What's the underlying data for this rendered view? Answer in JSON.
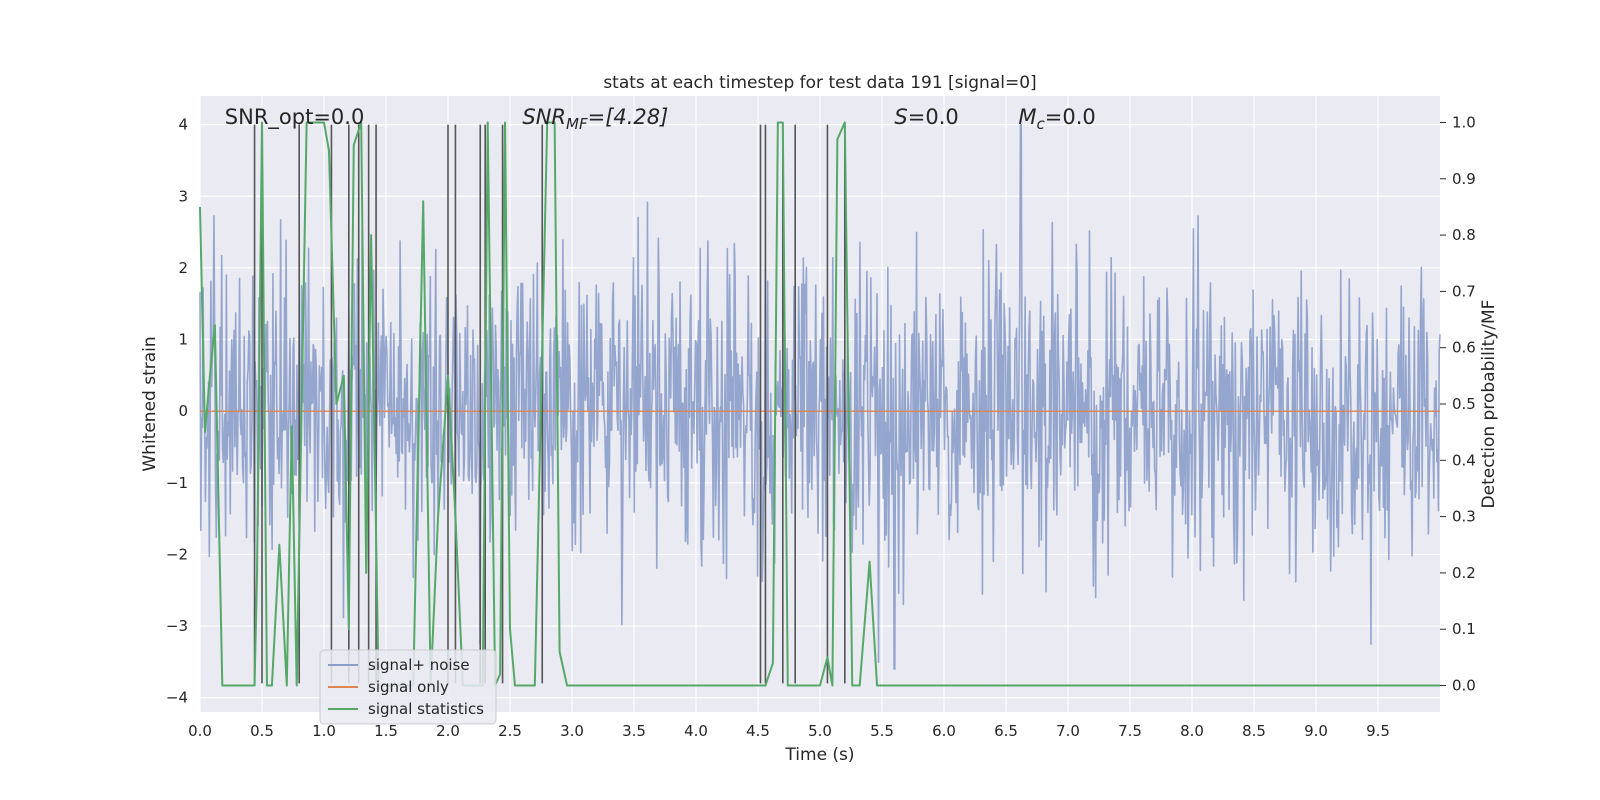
{
  "chart_data": {
    "type": "line",
    "title": "stats at each timestep for test data 191 [signal=0]",
    "xlabel": "Time (s)",
    "ylabel_left": "Whitened strain",
    "ylabel_right": "Detection probability/MF",
    "xlim": [
      0.0,
      10.0
    ],
    "ylim_left": [
      -4.2,
      4.4
    ],
    "ylim_right": [
      -0.047,
      1.047
    ],
    "xticks": [
      0.0,
      0.5,
      1.0,
      1.5,
      2.0,
      2.5,
      3.0,
      3.5,
      4.0,
      4.5,
      5.0,
      5.5,
      6.0,
      6.5,
      7.0,
      7.5,
      8.0,
      8.5,
      9.0,
      9.5
    ],
    "xtick_labels": [
      "0.0",
      "0.5",
      "1.0",
      "1.5",
      "2.0",
      "2.5",
      "3.0",
      "3.5",
      "4.0",
      "4.5",
      "5.0",
      "5.5",
      "6.0",
      "6.5",
      "7.0",
      "7.5",
      "8.0",
      "8.5",
      "9.0",
      "9.5"
    ],
    "yticks_left": [
      4,
      3,
      2,
      1,
      0,
      -1,
      -2,
      -3,
      -4
    ],
    "ytick_labels_left": [
      "4",
      "3",
      "2",
      "1",
      "0",
      "−1",
      "−2",
      "−3",
      "−4"
    ],
    "yticks_right": [
      1.0,
      0.9,
      0.8,
      0.7,
      0.6,
      0.5,
      0.4,
      0.3,
      0.2,
      0.1,
      0.0
    ],
    "ytick_labels_right": [
      "1.0",
      "0.9",
      "0.8",
      "0.7",
      "0.6",
      "0.5",
      "0.4",
      "0.3",
      "0.2",
      "0.1",
      "0.0"
    ],
    "grid": true,
    "legend_placement": "lower-left",
    "annotations": {
      "snr_opt": {
        "text": "SNR_opt=0.0",
        "x": 0.2
      },
      "snr_mf_prefix": {
        "text": "SNR",
        "x": 2.6
      },
      "snr_mf_sub": "MF",
      "snr_mf_suffix": "=[4.28]",
      "s_prefix": {
        "text": "S",
        "x": 5.6
      },
      "s_suffix": "=0.0",
      "mc_prefix": {
        "text": "M",
        "x": 6.6
      },
      "mc_sub": "c",
      "mc_suffix": "=0.0"
    },
    "series": [
      {
        "name": "signal+ noise",
        "axis": "left",
        "color": "#8c9fca",
        "description_stats": {
          "n": 1600,
          "sigma": 1.0,
          "max": 4.0,
          "min": -3.6,
          "x_max": 6.62,
          "x_min": 5.6
        }
      },
      {
        "name": "signal only",
        "axis": "left",
        "color": "#dd8452",
        "x": [
          0.0,
          10.0
        ],
        "y": [
          0.0,
          0.0
        ]
      },
      {
        "name": "signal statistics",
        "axis": "right",
        "color": "#55a868",
        "x": [
          0.0,
          0.04,
          0.08,
          0.12,
          0.18,
          0.3,
          0.44,
          0.46,
          0.5,
          0.54,
          0.58,
          0.64,
          0.7,
          0.74,
          0.78,
          0.86,
          0.9,
          1.0,
          1.04,
          1.1,
          1.16,
          1.2,
          1.24,
          1.3,
          1.34,
          1.38,
          1.44,
          1.5,
          1.72,
          1.8,
          1.86,
          1.92,
          2.0,
          2.06,
          2.12,
          2.2,
          2.28,
          2.32,
          2.38,
          2.42,
          2.46,
          2.5,
          2.54,
          2.6,
          2.7,
          2.8,
          2.86,
          2.9,
          2.96,
          3.0,
          3.2,
          3.6,
          4.0,
          4.5,
          4.56,
          4.62,
          4.66,
          4.7,
          4.74,
          4.78,
          4.82,
          4.86,
          4.9,
          5.0,
          5.06,
          5.1,
          5.14,
          5.2,
          5.26,
          5.32,
          5.4,
          5.46,
          5.52,
          5.58,
          5.66,
          6.0,
          7.0,
          8.0,
          9.0,
          10.0
        ],
        "y": [
          0.85,
          0.45,
          0.55,
          0.64,
          0.0,
          0.0,
          0.0,
          0.2,
          1.0,
          0.0,
          0.0,
          0.25,
          0.0,
          0.46,
          0.0,
          1.0,
          1.0,
          1.0,
          0.95,
          0.5,
          0.55,
          0.1,
          0.96,
          1.0,
          0.2,
          0.8,
          0.0,
          0.0,
          0.0,
          0.86,
          0.0,
          0.3,
          0.55,
          0.3,
          0.0,
          0.0,
          0.0,
          1.0,
          0.0,
          0.02,
          1.0,
          0.1,
          0.0,
          0.0,
          0.0,
          1.0,
          1.0,
          0.06,
          0.0,
          0.0,
          0.0,
          0.0,
          0.0,
          0.0,
          0.0,
          0.04,
          1.0,
          1.0,
          0.0,
          0.0,
          0.0,
          0.0,
          0.0,
          0.0,
          0.05,
          0.0,
          0.97,
          1.0,
          0.0,
          0.0,
          0.22,
          0.0,
          0.0,
          0.0,
          0.0,
          0.0,
          0.0,
          0.0,
          0.0,
          0.0
        ]
      },
      {
        "name": "",
        "axis": "left",
        "color": "#555555",
        "role": "vertical markers",
        "x": [
          0.44,
          0.5,
          0.8,
          1.06,
          1.2,
          1.28,
          1.36,
          1.42,
          2.0,
          2.06,
          2.26,
          2.3,
          2.44,
          2.76,
          4.52,
          4.56,
          4.7,
          4.8,
          5.06,
          5.2
        ]
      }
    ],
    "legend": [
      {
        "label": "signal+ noise",
        "color": "#8c9fca"
      },
      {
        "label": "signal only",
        "color": "#dd8452"
      },
      {
        "label": "signal statistics",
        "color": "#55a868"
      }
    ]
  }
}
